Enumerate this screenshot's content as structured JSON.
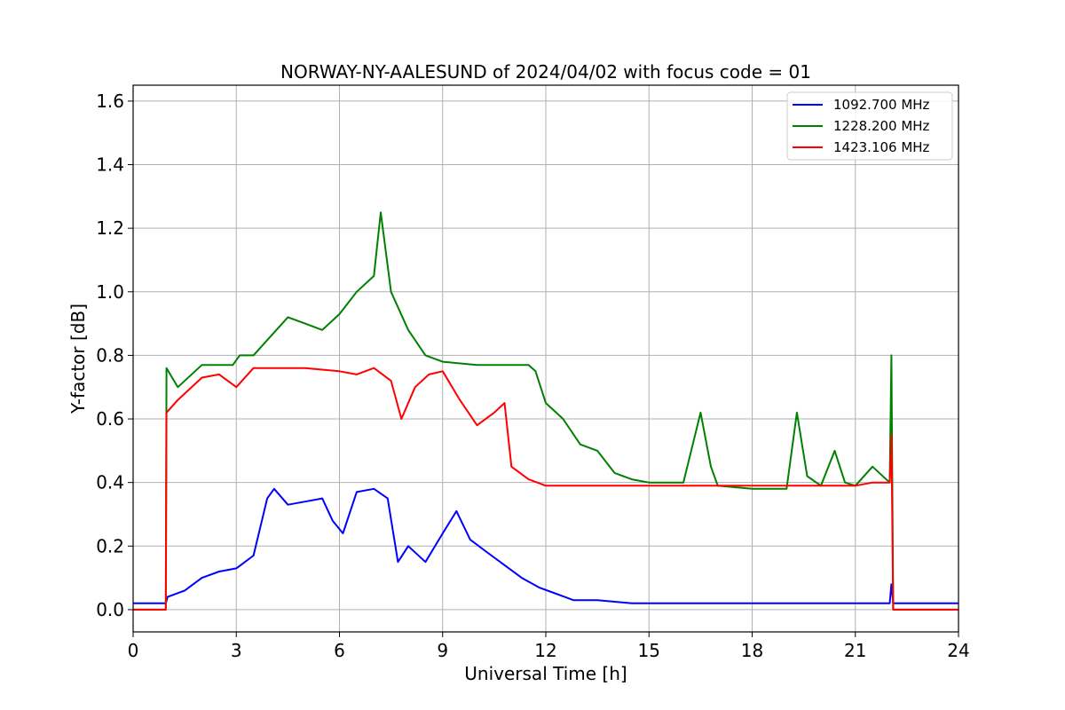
{
  "chart_data": {
    "type": "line",
    "title": "NORWAY-NY-AALESUND of 2024/04/02 with focus code = 01",
    "xlabel": "Universal Time [h]",
    "ylabel": "Y-factor [dB]",
    "xlim": [
      0,
      24
    ],
    "ylim": [
      -0.07,
      1.65
    ],
    "x_ticks": [
      0,
      3,
      6,
      9,
      12,
      15,
      18,
      21,
      24
    ],
    "x_tick_labels": [
      "0",
      "3",
      "6",
      "9",
      "12",
      "15",
      "18",
      "21",
      "24"
    ],
    "y_ticks": [
      0.0,
      0.2,
      0.4,
      0.6,
      0.8,
      1.0,
      1.2,
      1.4,
      1.6
    ],
    "y_tick_labels": [
      "0.0",
      "0.2",
      "0.4",
      "0.6",
      "0.8",
      "1.0",
      "1.2",
      "1.4",
      "1.6"
    ],
    "grid": true,
    "legend_position": "top-right",
    "series": [
      {
        "name": "1092.700 MHz",
        "color": "#0000ff",
        "x": [
          0,
          0.9,
          0.95,
          1.0,
          1.5,
          2.0,
          2.5,
          3.0,
          3.5,
          3.9,
          4.1,
          4.5,
          5.0,
          5.5,
          5.8,
          6.1,
          6.5,
          7.0,
          7.4,
          7.7,
          8.0,
          8.5,
          9.0,
          9.4,
          9.8,
          10.3,
          10.8,
          11.3,
          11.8,
          12.3,
          12.8,
          13.5,
          14.5,
          15.0,
          18.0,
          21.0,
          22.0,
          22.05,
          22.1,
          23.0,
          24.0
        ],
        "y": [
          0.02,
          0.02,
          0.02,
          0.04,
          0.06,
          0.1,
          0.12,
          0.13,
          0.17,
          0.35,
          0.38,
          0.33,
          0.34,
          0.35,
          0.28,
          0.24,
          0.37,
          0.38,
          0.35,
          0.15,
          0.2,
          0.15,
          0.24,
          0.31,
          0.22,
          0.18,
          0.14,
          0.1,
          0.07,
          0.05,
          0.03,
          0.03,
          0.02,
          0.02,
          0.02,
          0.02,
          0.02,
          0.08,
          0.02,
          0.02,
          0.02
        ]
      },
      {
        "name": "1228.200 MHz",
        "color": "#008000",
        "x": [
          0,
          0.95,
          0.97,
          1.3,
          2.0,
          2.9,
          3.1,
          3.5,
          4.0,
          4.5,
          5.0,
          5.5,
          6.0,
          6.5,
          7.0,
          7.2,
          7.5,
          8.0,
          8.5,
          9.0,
          10.0,
          11.0,
          11.5,
          11.7,
          12.0,
          12.5,
          13.0,
          13.5,
          14.0,
          14.5,
          15.0,
          16.0,
          16.5,
          16.8,
          17.0,
          18.0,
          19.0,
          19.3,
          19.6,
          20.0,
          20.4,
          20.7,
          21.0,
          21.5,
          22.0,
          22.05,
          22.1,
          23.0,
          24.0
        ],
        "y": [
          0.0,
          0.0,
          0.76,
          0.7,
          0.77,
          0.77,
          0.8,
          0.8,
          0.86,
          0.92,
          0.9,
          0.88,
          0.93,
          1.0,
          1.05,
          1.25,
          1.0,
          0.88,
          0.8,
          0.78,
          0.77,
          0.77,
          0.77,
          0.75,
          0.65,
          0.6,
          0.52,
          0.5,
          0.43,
          0.41,
          0.4,
          0.4,
          0.62,
          0.45,
          0.39,
          0.38,
          0.38,
          0.62,
          0.42,
          0.39,
          0.5,
          0.4,
          0.39,
          0.45,
          0.4,
          0.8,
          0.0,
          0.0,
          0.0
        ]
      },
      {
        "name": "1423.106 MHz",
        "color": "#ff0000",
        "x": [
          0,
          0.95,
          0.97,
          1.3,
          2.0,
          2.5,
          3.0,
          3.5,
          4.0,
          5.0,
          6.0,
          6.5,
          7.0,
          7.5,
          7.6,
          7.8,
          8.2,
          8.6,
          9.0,
          9.5,
          10.0,
          10.5,
          10.8,
          11.0,
          11.5,
          12.0,
          13.0,
          14.0,
          15.0,
          16.0,
          17.0,
          18.0,
          19.0,
          20.0,
          21.0,
          21.5,
          22.0,
          22.05,
          22.1,
          23.0,
          24.0
        ],
        "y": [
          0.0,
          0.0,
          0.62,
          0.66,
          0.73,
          0.74,
          0.7,
          0.76,
          0.76,
          0.76,
          0.75,
          0.74,
          0.76,
          0.72,
          0.68,
          0.6,
          0.7,
          0.74,
          0.75,
          0.66,
          0.58,
          0.62,
          0.65,
          0.45,
          0.41,
          0.39,
          0.39,
          0.39,
          0.39,
          0.39,
          0.39,
          0.39,
          0.39,
          0.39,
          0.39,
          0.4,
          0.4,
          0.55,
          0.0,
          0.0,
          0.0
        ]
      }
    ]
  }
}
